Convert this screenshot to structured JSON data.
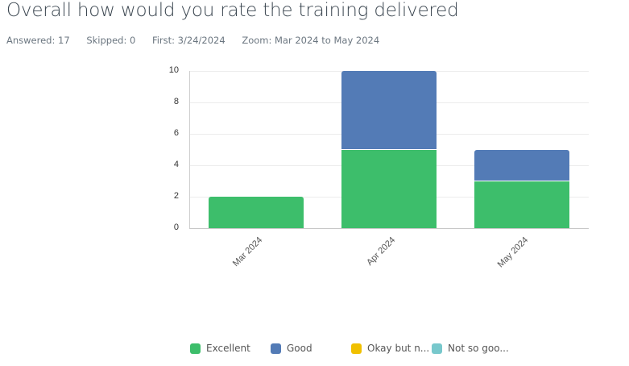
{
  "header": {
    "title": "Overall how would you rate the training delivered",
    "answered": "Answered: 17",
    "skipped": "Skipped: 0",
    "first": "First: 3/24/2024",
    "zoom": "Zoom: Mar 2024 to May 2024"
  },
  "colors": {
    "excellent": "#3dbe6b",
    "good": "#537bb6",
    "okay": "#f0c000",
    "not_so_good": "#78c8cc"
  },
  "legend": [
    {
      "label": "Excellent",
      "color": "#3dbe6b"
    },
    {
      "label": "Good",
      "color": "#537bb6"
    },
    {
      "label": "Okay but n...",
      "color": "#f0c000"
    },
    {
      "label": "Not so goo...",
      "color": "#78c8cc"
    }
  ],
  "y_ticks": [
    "0",
    "2",
    "4",
    "6",
    "8",
    "10"
  ],
  "x_labels": [
    "Mar 2024",
    "Apr 2024",
    "May 2024"
  ],
  "chart_data": {
    "type": "bar",
    "stacked": true,
    "title": "Overall how would you rate the training delivered",
    "xlabel": "",
    "ylabel": "",
    "categories": [
      "Mar 2024",
      "Apr 2024",
      "May 2024"
    ],
    "series": [
      {
        "name": "Excellent",
        "values": [
          2,
          5,
          3
        ],
        "color": "#3dbe6b"
      },
      {
        "name": "Good",
        "values": [
          0,
          5,
          2
        ],
        "color": "#537bb6"
      },
      {
        "name": "Okay but n...",
        "values": [
          0,
          0,
          0
        ],
        "color": "#f0c000"
      },
      {
        "name": "Not so goo...",
        "values": [
          0,
          0,
          0
        ],
        "color": "#78c8cc"
      }
    ],
    "ylim": [
      0,
      10
    ],
    "y_ticks": [
      0,
      2,
      4,
      6,
      8,
      10
    ],
    "grid": true,
    "legend_position": "bottom"
  }
}
